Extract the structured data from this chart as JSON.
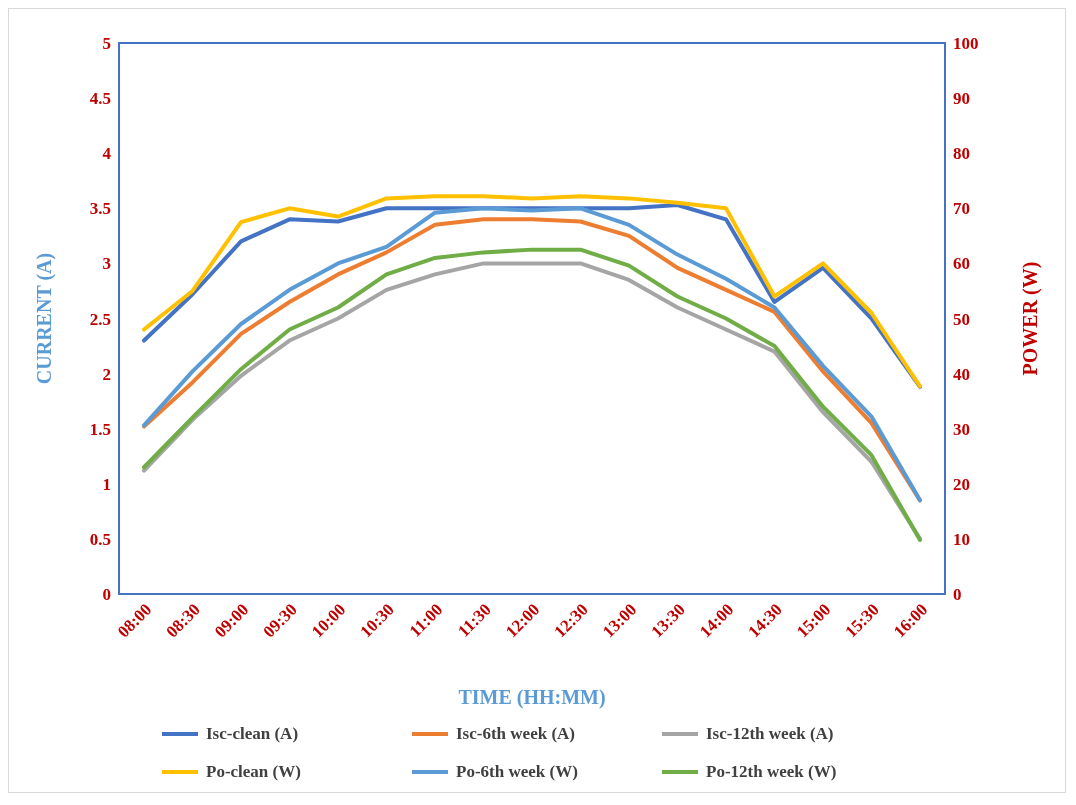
{
  "chart_data": {
    "type": "line",
    "xlabel": "TIME (HH:MM)",
    "ylabel": "CURRENT (A)",
    "y2label": "POWER (W)",
    "categories": [
      "08:00",
      "08:30",
      "09:00",
      "09:30",
      "10:00",
      "10:30",
      "11:00",
      "11:30",
      "12:00",
      "12:30",
      "13:00",
      "13:30",
      "14:00",
      "14:30",
      "15:00",
      "15:30",
      "16:00"
    ],
    "ylim": [
      0,
      5
    ],
    "yticks": [
      0,
      0.5,
      1,
      1.5,
      2,
      2.5,
      3,
      3.5,
      4,
      4.5,
      5
    ],
    "y2lim": [
      0,
      100
    ],
    "y2ticks": [
      0,
      10,
      20,
      30,
      40,
      50,
      60,
      70,
      80,
      90,
      100
    ],
    "grid": false,
    "legend": "bottom",
    "marker": "none",
    "line_style": "solid",
    "series": [
      {
        "name": "Isc-clean (A)",
        "color": "#4472c4",
        "values": [
          2.3,
          2.72,
          3.2,
          3.4,
          3.38,
          3.5,
          3.5,
          3.5,
          3.5,
          3.5,
          3.5,
          3.53,
          3.4,
          2.65,
          2.96,
          2.5,
          1.88
        ]
      },
      {
        "name": "Isc-6th week (A)",
        "color": "#ed7d31",
        "values": [
          1.52,
          1.92,
          2.36,
          2.65,
          2.9,
          3.1,
          3.35,
          3.4,
          3.4,
          3.38,
          3.25,
          2.96,
          2.76,
          2.56,
          2.02,
          1.55,
          0.85
        ]
      },
      {
        "name": "Isc-12th week (A)",
        "color": "#a5a5a5",
        "values": [
          1.12,
          1.58,
          1.98,
          2.3,
          2.5,
          2.76,
          2.9,
          3.0,
          3.0,
          3.0,
          2.85,
          2.6,
          2.4,
          2.2,
          1.65,
          1.2,
          0.5
        ]
      },
      {
        "name": "Po-clean (W)",
        "color": "#ffc000",
        "axis": "y2",
        "values": [
          48,
          55,
          67.5,
          70,
          68.5,
          71.8,
          72.2,
          72.2,
          71.8,
          72.2,
          71.8,
          71,
          70,
          54,
          60,
          51,
          37.7
        ]
      },
      {
        "name": "Po-6th week (W)",
        "color": "#5b9bd5",
        "axis": "y2",
        "values": [
          30.6,
          40.4,
          49,
          55.2,
          60,
          63,
          69.2,
          70,
          69.6,
          70,
          67,
          61.6,
          57.2,
          52,
          41.4,
          32.2,
          17
        ]
      },
      {
        "name": "Po-12th week (W)",
        "color": "#70ad47",
        "axis": "y2",
        "values": [
          23,
          32,
          40.8,
          48,
          52,
          58,
          61,
          62,
          62.5,
          62.5,
          59.6,
          54,
          50,
          45,
          34,
          25.2,
          9.8
        ]
      }
    ]
  }
}
